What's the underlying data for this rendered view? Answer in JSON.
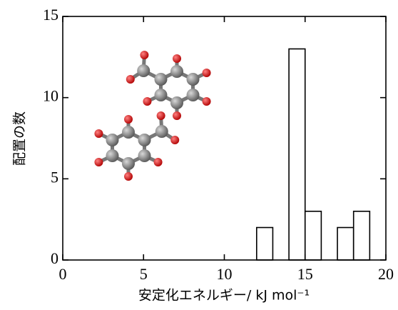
{
  "chart_data": {
    "type": "histogram",
    "x_label": "安定化エネルギー/ kJ mol⁻¹",
    "y_label": "配置の数",
    "bins": [
      12,
      13,
      14,
      15,
      16,
      17,
      18,
      19
    ],
    "values": [
      2,
      0,
      13,
      3,
      0,
      2,
      3
    ],
    "color": "#ffffff",
    "edge_color": "#000000",
    "xlim": [
      0,
      20
    ],
    "xticks": [
      0,
      5,
      10,
      15,
      20
    ],
    "ylim": [
      0,
      15
    ],
    "yticks": [
      0,
      5,
      10,
      15
    ]
  }
}
